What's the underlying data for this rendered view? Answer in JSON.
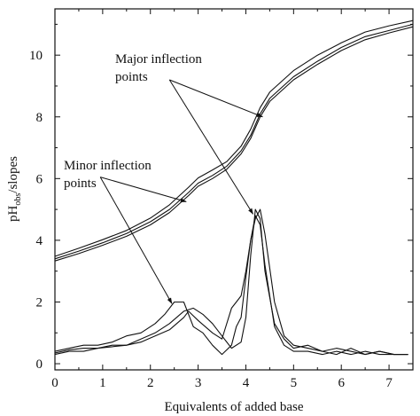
{
  "chart_data": {
    "type": "line",
    "title": "",
    "xlabel": "Equivalents of added base",
    "ylabel": "pH",
    "ylabel_sub": "obs",
    "ylabel_suffix": "/slopes",
    "xlim": [
      0,
      7.5
    ],
    "ylim": [
      -0.2,
      11.5
    ],
    "x_ticks": [
      "0",
      "1",
      "2",
      "3",
      "4",
      "5",
      "6",
      "7"
    ],
    "y_ticks": [
      "0",
      "2",
      "4",
      "6",
      "8",
      "10"
    ],
    "grid": false,
    "annotations": {
      "major_line1": "Major inflection",
      "major_line2": "points",
      "minor_line1": "Minor inflection",
      "minor_line2": "points"
    },
    "series": [
      {
        "x": [
          0,
          0.5,
          1,
          1.5,
          2,
          2.4,
          2.8,
          3.0,
          3.3,
          3.6,
          3.9,
          4.1,
          4.3,
          4.5,
          5.0,
          5.5,
          6.0,
          6.5,
          7.0,
          7.5
        ],
        "values": [
          3.4,
          3.65,
          3.92,
          4.22,
          4.6,
          5.0,
          5.55,
          5.85,
          6.1,
          6.4,
          6.9,
          7.4,
          8.1,
          8.6,
          9.3,
          9.8,
          10.25,
          10.6,
          10.8,
          11.0
        ]
      },
      {
        "x": [
          0,
          0.5,
          1,
          1.5,
          2,
          2.4,
          2.8,
          3.0,
          3.3,
          3.6,
          3.9,
          4.1,
          4.3,
          4.5,
          5.0,
          5.5,
          6.0,
          6.5,
          7.0,
          7.5
        ],
        "values": [
          3.48,
          3.74,
          4.02,
          4.32,
          4.72,
          5.15,
          5.72,
          6.02,
          6.28,
          6.55,
          7.05,
          7.6,
          8.3,
          8.8,
          9.5,
          10.0,
          10.4,
          10.75,
          10.95,
          11.12
        ]
      },
      {
        "x": [
          0,
          0.5,
          1,
          1.5,
          2,
          2.4,
          2.8,
          3.0,
          3.3,
          3.6,
          3.9,
          4.1,
          4.3,
          4.5,
          5.0,
          5.5,
          6.0,
          6.5,
          7.0,
          7.5
        ],
        "values": [
          3.33,
          3.57,
          3.84,
          4.13,
          4.5,
          4.9,
          5.45,
          5.75,
          6.0,
          6.3,
          6.8,
          7.3,
          8.0,
          8.5,
          9.2,
          9.7,
          10.15,
          10.5,
          10.72,
          10.92
        ]
      },
      {
        "x": [
          0,
          0.3,
          0.6,
          0.9,
          1.2,
          1.5,
          1.8,
          2.1,
          2.3,
          2.5,
          2.7,
          2.9,
          3.1,
          3.3,
          3.5,
          3.7,
          3.8,
          3.9,
          4.0,
          4.1,
          4.2,
          4.3,
          4.4,
          4.6,
          4.8,
          5.0,
          5.3,
          5.6,
          5.9,
          6.2,
          6.5,
          6.8,
          7.1,
          7.4
        ],
        "values": [
          0.4,
          0.5,
          0.6,
          0.6,
          0.7,
          0.9,
          1.0,
          1.3,
          1.6,
          2.0,
          2.0,
          1.2,
          1.0,
          0.6,
          0.3,
          0.6,
          1.2,
          1.5,
          2.8,
          4.0,
          4.8,
          4.5,
          3.2,
          1.2,
          0.6,
          0.4,
          0.4,
          0.3,
          0.4,
          0.3,
          0.4,
          0.3,
          0.3,
          0.3
        ]
      },
      {
        "x": [
          0,
          0.3,
          0.6,
          0.9,
          1.2,
          1.5,
          1.8,
          2.1,
          2.4,
          2.7,
          2.9,
          3.1,
          3.3,
          3.5,
          3.7,
          3.9,
          4.0,
          4.1,
          4.2,
          4.3,
          4.4,
          4.6,
          4.8,
          5.0,
          5.3,
          5.6,
          5.9,
          6.2,
          6.5,
          6.8,
          7.1,
          7.4
        ],
        "values": [
          0.3,
          0.4,
          0.4,
          0.5,
          0.6,
          0.6,
          0.8,
          1.0,
          1.3,
          1.7,
          1.8,
          1.6,
          1.3,
          0.9,
          0.5,
          0.7,
          1.5,
          3.5,
          5.0,
          4.7,
          3.0,
          1.3,
          0.8,
          0.5,
          0.6,
          0.4,
          0.3,
          0.5,
          0.3,
          0.4,
          0.3,
          0.3
        ]
      },
      {
        "x": [
          0,
          0.3,
          0.6,
          0.9,
          1.2,
          1.5,
          1.8,
          2.1,
          2.4,
          2.7,
          2.8,
          3.0,
          3.3,
          3.5,
          3.7,
          3.8,
          3.9,
          4.0,
          4.1,
          4.2,
          4.3,
          4.4,
          4.6,
          4.8,
          5.0,
          5.3,
          5.6,
          5.9,
          6.2,
          6.5,
          6.8,
          7.1,
          7.4
        ],
        "values": [
          0.35,
          0.45,
          0.5,
          0.5,
          0.55,
          0.6,
          0.7,
          0.9,
          1.1,
          1.5,
          1.7,
          1.4,
          1.0,
          0.8,
          1.8,
          2.0,
          2.2,
          3.0,
          4.0,
          4.7,
          5.0,
          4.2,
          2.0,
          0.9,
          0.6,
          0.5,
          0.4,
          0.5,
          0.4,
          0.3,
          0.4,
          0.3,
          0.3
        ]
      }
    ]
  }
}
